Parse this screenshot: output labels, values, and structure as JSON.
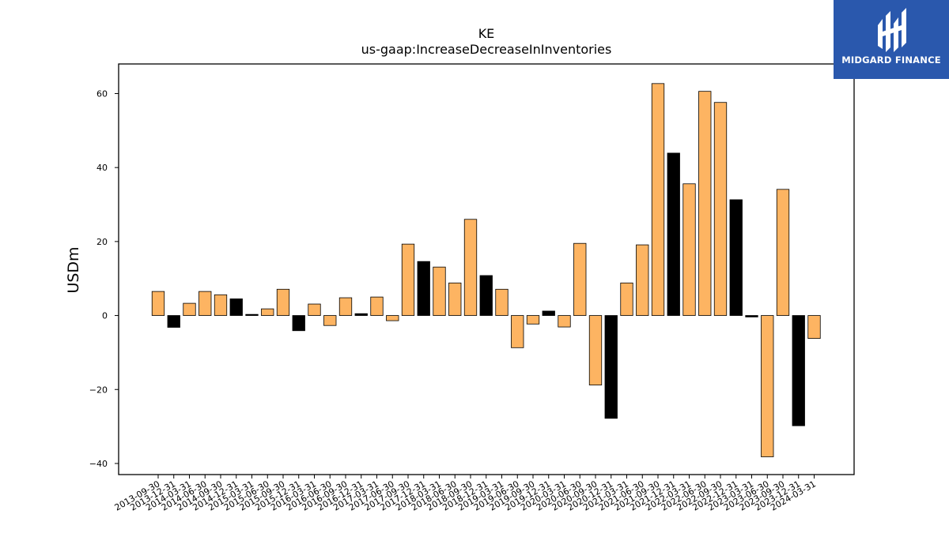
{
  "logo": {
    "text": "MIDGARD FINANCE",
    "color": "#2a58ad"
  },
  "chart_data": {
    "type": "bar",
    "title": "KE",
    "subtitle": "us-gaap:IncreaseDecreaseInInventories",
    "xlabel": "",
    "ylabel": "USDm",
    "ylim": [
      -43,
      68
    ],
    "yticks": [
      -40,
      -20,
      0,
      20,
      40,
      60
    ],
    "grid": false,
    "colors": {
      "regular": "#fdb462",
      "q4": "#000000",
      "edge": "#000000"
    },
    "categories": [
      "2013-09-30",
      "2013-12-31",
      "2014-03-31",
      "2014-06-30",
      "2014-09-30",
      "2014-12-31",
      "2015-03-31",
      "2015-06-30",
      "2015-09-30",
      "2015-12-31",
      "2016-03-31",
      "2016-06-30",
      "2016-09-30",
      "2016-12-31",
      "2017-03-31",
      "2017-06-30",
      "2017-09-30",
      "2017-12-31",
      "2018-03-31",
      "2018-06-30",
      "2018-09-30",
      "2018-12-31",
      "2019-03-31",
      "2019-06-30",
      "2019-09-30",
      "2019-12-31",
      "2020-03-31",
      "2020-06-30",
      "2020-09-30",
      "2020-12-31",
      "2021-03-31",
      "2021-06-30",
      "2021-09-30",
      "2021-12-31",
      "2022-03-31",
      "2022-06-30",
      "2022-09-30",
      "2022-12-31",
      "2023-03-31",
      "2023-06-30",
      "2023-09-30",
      "2023-12-31",
      "2024-03-31"
    ],
    "values": [
      6.5,
      -3.2,
      3.3,
      6.5,
      5.6,
      4.5,
      0.3,
      1.8,
      7.1,
      -4.1,
      3.1,
      -2.7,
      4.8,
      0.5,
      5.0,
      -1.4,
      19.3,
      14.6,
      13.1,
      8.8,
      26.0,
      10.8,
      7.1,
      -8.7,
      -2.3,
      1.2,
      -3.1,
      19.5,
      -18.8,
      -27.8,
      8.8,
      19.1,
      62.7,
      43.9,
      35.6,
      60.6,
      57.6,
      31.3,
      -0.4,
      -38.2,
      34.1,
      -29.8,
      -6.2
    ],
    "highlight": [
      false,
      true,
      false,
      false,
      false,
      true,
      true,
      false,
      false,
      true,
      false,
      false,
      false,
      true,
      false,
      false,
      false,
      true,
      false,
      false,
      false,
      true,
      false,
      false,
      false,
      true,
      false,
      false,
      false,
      true,
      false,
      false,
      false,
      true,
      false,
      false,
      false,
      true,
      true,
      false,
      false,
      true,
      false
    ]
  }
}
